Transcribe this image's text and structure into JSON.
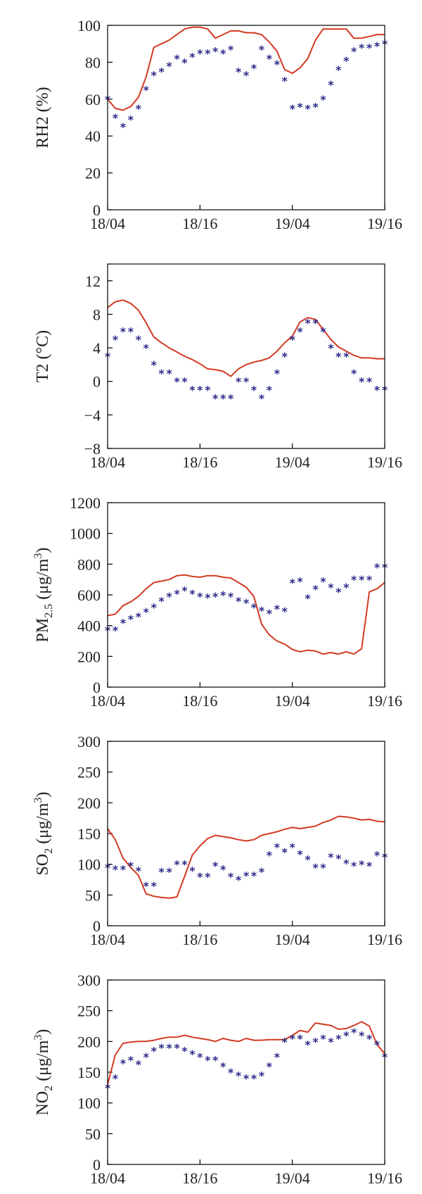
{
  "colors": {
    "model": "#d23a23",
    "observed": "#2b2a8a",
    "axis": "#000000"
  },
  "chart_data": [
    {
      "type": "line",
      "ylabel": "RH2 (%)",
      "ylabel_parts": [
        {
          "text": "RH2 (%)"
        }
      ],
      "ylim": [
        0,
        100
      ],
      "yticks": [
        0,
        20,
        40,
        60,
        80,
        100
      ],
      "ytick_labels": [
        "0",
        "20",
        "40",
        "60",
        "80",
        "100"
      ],
      "xlim": [
        0,
        36
      ],
      "xticks": [
        0,
        12,
        24,
        36
      ],
      "xtick_labels": [
        "18/04",
        "18/16",
        "19/04",
        "19/16"
      ],
      "series": [
        {
          "style": "line",
          "x": [
            0,
            1,
            2,
            3,
            4,
            5,
            6,
            7,
            8,
            9,
            10,
            11,
            12,
            13,
            14,
            15,
            16,
            17,
            18,
            19,
            20,
            21,
            22,
            23,
            24,
            25,
            26,
            27,
            28,
            29,
            30,
            31,
            32,
            33,
            34,
            35,
            36
          ],
          "values": [
            60,
            55,
            54,
            56,
            61,
            72,
            88,
            90,
            92,
            95,
            98,
            99,
            99,
            98,
            93,
            95,
            97,
            97,
            96,
            96,
            95,
            91,
            86,
            76,
            74,
            77,
            82,
            92,
            98,
            98,
            98,
            98,
            93,
            93,
            94,
            95,
            95
          ]
        },
        {
          "style": "markers",
          "x": [
            0,
            1,
            2,
            3,
            4,
            5,
            6,
            7,
            8,
            9,
            10,
            11,
            12,
            13,
            14,
            15,
            16,
            17,
            18,
            19,
            20,
            21,
            22,
            23,
            24,
            25,
            26,
            27,
            28,
            29,
            30,
            31,
            32,
            33,
            34,
            35,
            36
          ],
          "values": [
            60,
            50,
            45,
            49,
            55,
            65,
            73,
            75,
            78,
            82,
            80,
            83,
            85,
            85,
            86,
            85,
            87,
            75,
            73,
            77,
            87,
            82,
            79,
            70,
            55,
            56,
            55,
            56,
            60,
            68,
            76,
            81,
            86,
            88,
            88,
            89,
            90
          ]
        }
      ]
    },
    {
      "type": "line",
      "ylabel": "T2 (°C)",
      "ylabel_parts": [
        {
          "text": "T2 (°C)"
        }
      ],
      "ylim": [
        -8,
        14
      ],
      "yticks": [
        -8,
        -4,
        0,
        4,
        8,
        12
      ],
      "ytick_labels": [
        "−8",
        "−4",
        "0",
        "4",
        "8",
        "12"
      ],
      "xlim": [
        0,
        36
      ],
      "xticks": [
        0,
        12,
        24,
        36
      ],
      "xtick_labels": [
        "18/04",
        "18/16",
        "19/04",
        "19/16"
      ],
      "series": [
        {
          "style": "line",
          "x": [
            0,
            1,
            2,
            3,
            4,
            5,
            6,
            7,
            8,
            9,
            10,
            11,
            12,
            13,
            14,
            15,
            16,
            17,
            18,
            19,
            20,
            21,
            22,
            23,
            24,
            25,
            26,
            27,
            28,
            29,
            30,
            31,
            32,
            33,
            34,
            35,
            36
          ],
          "values": [
            8.8,
            9.5,
            9.7,
            9.3,
            8.5,
            7,
            5.3,
            4.6,
            4,
            3.5,
            3,
            2.6,
            2.1,
            1.5,
            1.4,
            1.2,
            0.6,
            1.5,
            2,
            2.3,
            2.5,
            2.8,
            3.6,
            4.6,
            5.4,
            7.1,
            7.6,
            7.4,
            6.2,
            5,
            4.1,
            3.6,
            3.1,
            2.8,
            2.8,
            2.7,
            2.7
          ]
        },
        {
          "style": "markers",
          "x": [
            0,
            1,
            2,
            3,
            4,
            5,
            6,
            7,
            8,
            9,
            10,
            11,
            12,
            13,
            14,
            15,
            16,
            17,
            18,
            19,
            20,
            21,
            22,
            23,
            24,
            25,
            26,
            27,
            28,
            29,
            30,
            31,
            32,
            33,
            34,
            35,
            36
          ],
          "values": [
            3,
            5,
            6,
            6,
            5,
            4,
            2,
            1,
            1,
            0,
            0,
            -1,
            -1,
            -1,
            -2,
            -2,
            -2,
            0,
            0,
            -1,
            -2,
            -1,
            1,
            3,
            5,
            6,
            7,
            7,
            6,
            4,
            3,
            3,
            1,
            0,
            0,
            -1,
            -1
          ]
        }
      ]
    },
    {
      "type": "line",
      "ylabel": "PM2.5 (μg/m3)",
      "ylabel_parts": [
        {
          "text": "PM"
        },
        {
          "text": "2.5",
          "shift": "sub"
        },
        {
          "text": " (μg/m"
        },
        {
          "text": "3",
          "shift": "super"
        },
        {
          "text": ")"
        }
      ],
      "ylim": [
        0,
        1200
      ],
      "yticks": [
        0,
        200,
        400,
        600,
        800,
        1000,
        1200
      ],
      "ytick_labels": [
        "0",
        "200",
        "400",
        "600",
        "800",
        "1000",
        "1200"
      ],
      "xlim": [
        0,
        36
      ],
      "xticks": [
        0,
        12,
        24,
        36
      ],
      "xtick_labels": [
        "18/04",
        "18/16",
        "19/04",
        "19/16"
      ],
      "series": [
        {
          "style": "line",
          "x": [
            0,
            1,
            2,
            3,
            4,
            5,
            6,
            7,
            8,
            9,
            10,
            11,
            12,
            13,
            14,
            15,
            16,
            17,
            18,
            19,
            20,
            21,
            22,
            23,
            24,
            25,
            26,
            27,
            28,
            29,
            30,
            31,
            32,
            33,
            34,
            35,
            36
          ],
          "values": [
            465,
            475,
            530,
            555,
            590,
            640,
            680,
            690,
            700,
            725,
            730,
            720,
            715,
            725,
            725,
            715,
            710,
            680,
            650,
            590,
            410,
            340,
            300,
            280,
            245,
            230,
            240,
            235,
            215,
            225,
            215,
            230,
            215,
            250,
            620,
            640,
            680
          ]
        },
        {
          "style": "markers",
          "x": [
            0,
            1,
            2,
            3,
            4,
            5,
            6,
            7,
            8,
            9,
            10,
            11,
            12,
            13,
            14,
            15,
            16,
            17,
            18,
            19,
            20,
            21,
            22,
            23,
            24,
            25,
            26,
            27,
            28,
            29,
            30,
            31,
            32,
            33,
            34,
            35,
            36
          ],
          "values": [
            370,
            370,
            420,
            445,
            460,
            490,
            520,
            560,
            590,
            610,
            630,
            610,
            590,
            585,
            590,
            600,
            590,
            560,
            550,
            520,
            500,
            480,
            510,
            495,
            680,
            690,
            580,
            640,
            690,
            650,
            620,
            650,
            700,
            700,
            700,
            780,
            780
          ]
        }
      ]
    },
    {
      "type": "line",
      "ylabel": "SO2 (μg/m3)",
      "ylabel_parts": [
        {
          "text": "SO"
        },
        {
          "text": "2",
          "shift": "sub"
        },
        {
          "text": " (μg/m"
        },
        {
          "text": "3",
          "shift": "super"
        },
        {
          "text": ")"
        }
      ],
      "ylim": [
        0,
        300
      ],
      "yticks": [
        0,
        50,
        100,
        150,
        200,
        250,
        300
      ],
      "ytick_labels": [
        "0",
        "50",
        "100",
        "150",
        "200",
        "250",
        "300"
      ],
      "xlim": [
        0,
        36
      ],
      "xticks": [
        0,
        12,
        24,
        36
      ],
      "xtick_labels": [
        "18/04",
        "18/16",
        "19/04",
        "19/16"
      ],
      "series": [
        {
          "style": "line",
          "x": [
            0,
            1,
            2,
            3,
            4,
            5,
            6,
            7,
            8,
            9,
            10,
            11,
            12,
            13,
            14,
            15,
            16,
            17,
            18,
            19,
            20,
            21,
            22,
            23,
            24,
            25,
            26,
            27,
            28,
            29,
            30,
            31,
            32,
            33,
            34,
            35,
            36
          ],
          "values": [
            158,
            140,
            110,
            95,
            82,
            52,
            48,
            46,
            45,
            47,
            80,
            115,
            130,
            142,
            147,
            145,
            143,
            140,
            138,
            140,
            147,
            150,
            153,
            157,
            160,
            158,
            160,
            162,
            168,
            172,
            178,
            177,
            175,
            172,
            173,
            170,
            169
          ]
        },
        {
          "style": "markers",
          "x": [
            0,
            1,
            2,
            3,
            4,
            5,
            6,
            7,
            8,
            9,
            10,
            11,
            12,
            13,
            14,
            15,
            16,
            17,
            18,
            19,
            20,
            21,
            22,
            23,
            24,
            25,
            26,
            27,
            28,
            29,
            30,
            31,
            32,
            33,
            34,
            35,
            36
          ],
          "values": [
            95,
            92,
            92,
            98,
            90,
            65,
            65,
            88,
            88,
            100,
            100,
            90,
            80,
            80,
            98,
            92,
            80,
            75,
            82,
            82,
            88,
            115,
            128,
            120,
            128,
            117,
            108,
            95,
            95,
            112,
            110,
            102,
            98,
            100,
            98,
            115,
            112
          ]
        }
      ]
    },
    {
      "type": "line",
      "ylabel": "NO2 (μg/m3)",
      "ylabel_parts": [
        {
          "text": "NO"
        },
        {
          "text": "2",
          "shift": "sub"
        },
        {
          "text": " (μg/m"
        },
        {
          "text": "3",
          "shift": "super"
        },
        {
          "text": ")"
        }
      ],
      "ylim": [
        0,
        300
      ],
      "yticks": [
        0,
        50,
        100,
        150,
        200,
        250,
        300
      ],
      "ytick_labels": [
        "0",
        "50",
        "100",
        "150",
        "200",
        "250",
        "300"
      ],
      "xlim": [
        0,
        36
      ],
      "xticks": [
        0,
        12,
        24,
        36
      ],
      "xtick_labels": [
        "18/04",
        "18/16",
        "19/04",
        "19/16"
      ],
      "series": [
        {
          "style": "line",
          "x": [
            0,
            1,
            2,
            3,
            4,
            5,
            6,
            7,
            8,
            9,
            10,
            11,
            12,
            13,
            14,
            15,
            16,
            17,
            18,
            19,
            20,
            21,
            22,
            23,
            24,
            25,
            26,
            27,
            28,
            29,
            30,
            31,
            32,
            33,
            34,
            35,
            36
          ],
          "values": [
            130,
            178,
            197,
            199,
            200,
            200,
            202,
            205,
            207,
            207,
            210,
            207,
            205,
            203,
            200,
            205,
            202,
            200,
            205,
            202,
            202,
            203,
            203,
            203,
            210,
            218,
            215,
            230,
            228,
            226,
            220,
            221,
            226,
            232,
            225,
            195,
            180
          ]
        },
        {
          "style": "markers",
          "x": [
            0,
            1,
            2,
            3,
            4,
            5,
            6,
            7,
            8,
            9,
            10,
            11,
            12,
            13,
            14,
            15,
            16,
            17,
            18,
            19,
            20,
            21,
            22,
            23,
            24,
            25,
            26,
            27,
            28,
            29,
            30,
            31,
            32,
            33,
            34,
            35,
            36
          ],
          "values": [
            125,
            140,
            165,
            170,
            163,
            175,
            185,
            190,
            190,
            190,
            185,
            180,
            175,
            170,
            170,
            160,
            150,
            145,
            140,
            140,
            145,
            160,
            175,
            200,
            205,
            205,
            195,
            200,
            205,
            200,
            205,
            210,
            215,
            210,
            205,
            195,
            175
          ]
        }
      ]
    }
  ]
}
